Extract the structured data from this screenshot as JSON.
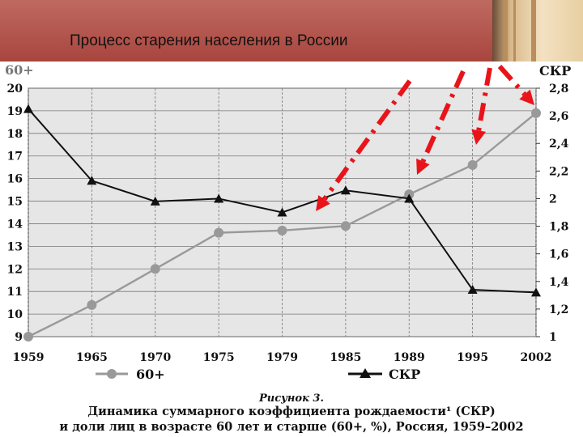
{
  "slide": {
    "title": "Процесс старения населения в России"
  },
  "caption": {
    "heading": "Рисунок 3.",
    "line1": "Динамика суммарного коэффициента рождаемости¹ (СКР)",
    "line2": "и доли лиц в возрасте 60 лет и старше (60+, %), Россия, 1959–2002"
  },
  "colors": {
    "banner": "#b0504a",
    "plot_bg": "#e6e6e6",
    "series_60": "#999999",
    "series_skr": "#111111",
    "arrows": "#e8141a"
  },
  "chart_data": {
    "type": "line",
    "categories": [
      "1959",
      "1965",
      "1970",
      "1975",
      "1979",
      "1985",
      "1989",
      "1995",
      "2002"
    ],
    "left_axis_title": "60+",
    "right_axis_title": "СКР",
    "left_ylim": [
      9,
      20
    ],
    "left_ticks": [
      9,
      10,
      11,
      12,
      13,
      14,
      15,
      16,
      17,
      18,
      19,
      20
    ],
    "right_ylim": [
      1.0,
      2.8
    ],
    "right_ticks": [
      "1",
      "1,2",
      "1,4",
      "1,6",
      "1,8",
      "2",
      "2,2",
      "2,4",
      "2,6",
      "2,8"
    ],
    "grid": true,
    "legend_position": "bottom",
    "series": [
      {
        "name": "60+",
        "axis": "left",
        "marker": "circle",
        "values": [
          9.0,
          10.4,
          12.0,
          13.6,
          13.7,
          13.9,
          15.3,
          16.6,
          18.9
        ]
      },
      {
        "name": "СКР",
        "axis": "right",
        "marker": "triangle",
        "values": [
          2.65,
          2.13,
          1.98,
          2.0,
          1.9,
          2.06,
          2.0,
          1.34,
          1.32
        ]
      }
    ]
  }
}
